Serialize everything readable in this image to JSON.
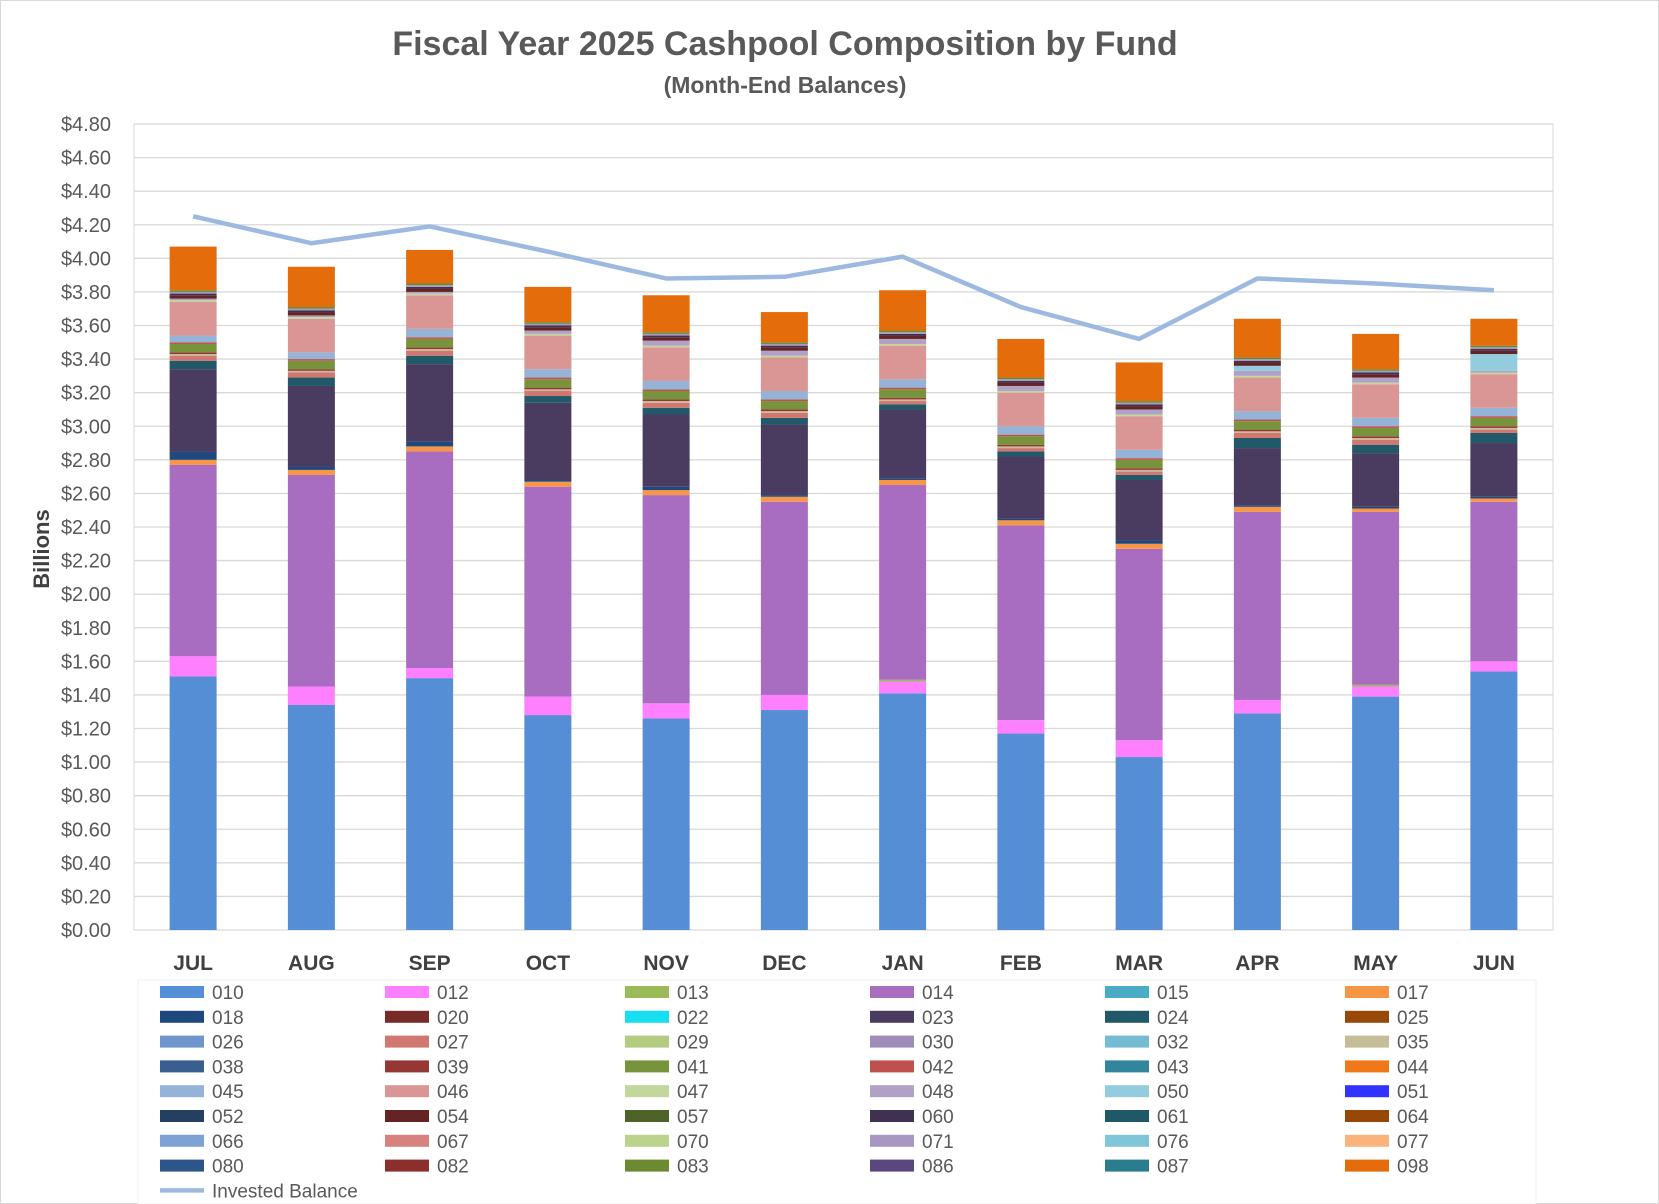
{
  "chart_data": {
    "type": "bar",
    "stacked": true,
    "title": "Fiscal Year 2025 Cashpool Composition by Fund",
    "subtitle": "(Month-End Balances)",
    "xlabel": "",
    "ylabel": "Billions",
    "ylim": [
      0,
      4.8
    ],
    "ytick_step": 0.2,
    "ytick_labels": [
      "$0.00",
      "$0.20",
      "$0.40",
      "$0.60",
      "$0.80",
      "$1.00",
      "$1.20",
      "$1.40",
      "$1.60",
      "$1.80",
      "$2.00",
      "$2.20",
      "$2.40",
      "$2.60",
      "$2.80",
      "$3.00",
      "$3.20",
      "$3.40",
      "$3.60",
      "$3.80",
      "$4.00",
      "$4.20",
      "$4.40",
      "$4.60",
      "$4.80"
    ],
    "grid": true,
    "legend_position": "bottom",
    "categories": [
      "JUL",
      "AUG",
      "SEP",
      "OCT",
      "NOV",
      "DEC",
      "JAN",
      "FEB",
      "MAR",
      "APR",
      "MAY",
      "JUN"
    ],
    "series": [
      {
        "name": "010",
        "color": "#558ED5",
        "values": [
          1.51,
          1.34,
          1.5,
          1.28,
          1.26,
          1.31,
          1.41,
          1.17,
          1.03,
          1.29,
          1.39,
          1.54
        ]
      },
      {
        "name": "012",
        "color": "#FF80FF",
        "values": [
          0.12,
          0.11,
          0.06,
          0.11,
          0.09,
          0.09,
          0.07,
          0.08,
          0.1,
          0.08,
          0.06,
          0.06
        ]
      },
      {
        "name": "013",
        "color": "#9BBB59",
        "values": [
          0.0,
          0.0,
          0.0,
          0.0,
          0.0,
          0.0,
          0.01,
          0.0,
          0.0,
          0.0,
          0.01,
          0.0
        ]
      },
      {
        "name": "014",
        "color": "#A86DC1",
        "values": [
          1.14,
          1.26,
          1.29,
          1.25,
          1.24,
          1.15,
          1.16,
          1.16,
          1.14,
          1.12,
          1.03,
          0.95
        ]
      },
      {
        "name": "015",
        "color": "#4BACC6",
        "values": [
          0.0,
          0.0,
          0.0,
          0.0,
          0.0,
          0.0,
          0.0,
          0.0,
          0.0,
          0.0,
          0.0,
          0.0
        ]
      },
      {
        "name": "017",
        "color": "#F79646",
        "values": [
          0.03,
          0.03,
          0.03,
          0.03,
          0.03,
          0.03,
          0.03,
          0.03,
          0.03,
          0.03,
          0.02,
          0.02
        ]
      },
      {
        "name": "018",
        "color": "#1F497D",
        "values": [
          0.05,
          0.02,
          0.03,
          0.01,
          0.02,
          0.01,
          0.01,
          0.01,
          0.02,
          0.01,
          0.01,
          0.01
        ]
      },
      {
        "name": "020",
        "color": "#772C2A",
        "values": [
          0.0,
          0.0,
          0.0,
          0.0,
          0.0,
          0.0,
          0.0,
          0.0,
          0.0,
          0.0,
          0.0,
          0.0
        ]
      },
      {
        "name": "022",
        "color": "#17DFEF",
        "values": [
          0.0,
          0.0,
          0.0,
          0.0,
          0.0,
          0.0,
          0.0,
          0.0,
          0.0,
          0.0,
          0.0,
          0.0
        ]
      },
      {
        "name": "023",
        "color": "#4A3B60",
        "values": [
          0.49,
          0.48,
          0.46,
          0.46,
          0.43,
          0.42,
          0.41,
          0.37,
          0.36,
          0.34,
          0.32,
          0.32
        ]
      },
      {
        "name": "024",
        "color": "#215968",
        "values": [
          0.05,
          0.05,
          0.05,
          0.04,
          0.04,
          0.04,
          0.03,
          0.03,
          0.03,
          0.06,
          0.05,
          0.06
        ]
      },
      {
        "name": "025",
        "color": "#984807",
        "values": [
          0.0,
          0.0,
          0.0,
          0.0,
          0.0,
          0.0,
          0.0,
          0.0,
          0.0,
          0.0,
          0.0,
          0.0
        ]
      },
      {
        "name": "026",
        "color": "#7094CC",
        "values": [
          0.0,
          0.0,
          0.0,
          0.0,
          0.0,
          0.0,
          0.0,
          0.0,
          0.0,
          0.0,
          0.0,
          0.0
        ]
      },
      {
        "name": "027",
        "color": "#D07772",
        "values": [
          0.03,
          0.03,
          0.03,
          0.03,
          0.03,
          0.03,
          0.02,
          0.02,
          0.02,
          0.03,
          0.03,
          0.02
        ]
      },
      {
        "name": "029",
        "color": "#B3CC82",
        "values": [
          0.0,
          0.0,
          0.0,
          0.0,
          0.0,
          0.0,
          0.0,
          0.0,
          0.0,
          0.0,
          0.0,
          0.0
        ]
      },
      {
        "name": "030",
        "color": "#9F8CB8",
        "values": [
          0.0,
          0.0,
          0.0,
          0.0,
          0.0,
          0.0,
          0.0,
          0.0,
          0.0,
          0.0,
          0.0,
          0.0
        ]
      },
      {
        "name": "032",
        "color": "#74BCD2",
        "values": [
          0.0,
          0.0,
          0.0,
          0.0,
          0.0,
          0.0,
          0.0,
          0.0,
          0.0,
          0.0,
          0.0,
          0.0
        ]
      },
      {
        "name": "035",
        "color": "#C4BD97",
        "values": [
          0.01,
          0.01,
          0.01,
          0.01,
          0.01,
          0.01,
          0.01,
          0.01,
          0.01,
          0.01,
          0.01,
          0.01
        ]
      },
      {
        "name": "038",
        "color": "#395E8F",
        "values": [
          0.0,
          0.0,
          0.0,
          0.0,
          0.0,
          0.0,
          0.0,
          0.0,
          0.0,
          0.0,
          0.0,
          0.0
        ]
      },
      {
        "name": "039",
        "color": "#953735",
        "values": [
          0.01,
          0.01,
          0.01,
          0.01,
          0.01,
          0.01,
          0.01,
          0.01,
          0.01,
          0.01,
          0.01,
          0.01
        ]
      },
      {
        "name": "041",
        "color": "#77933C",
        "values": [
          0.05,
          0.05,
          0.05,
          0.05,
          0.05,
          0.05,
          0.05,
          0.05,
          0.05,
          0.05,
          0.05,
          0.05
        ]
      },
      {
        "name": "042",
        "color": "#C0504D",
        "values": [
          0.01,
          0.01,
          0.01,
          0.01,
          0.01,
          0.01,
          0.01,
          0.01,
          0.01,
          0.01,
          0.01,
          0.01
        ]
      },
      {
        "name": "043",
        "color": "#31859C",
        "values": [
          0.0,
          0.0,
          0.0,
          0.0,
          0.0,
          0.0,
          0.0,
          0.0,
          0.0,
          0.0,
          0.0,
          0.0
        ]
      },
      {
        "name": "044",
        "color": "#F07818",
        "values": [
          0.0,
          0.0,
          0.0,
          0.0,
          0.0,
          0.0,
          0.0,
          0.0,
          0.0,
          0.0,
          0.0,
          0.0
        ]
      },
      {
        "name": "045",
        "color": "#95B3D7",
        "values": [
          0.04,
          0.04,
          0.05,
          0.05,
          0.05,
          0.05,
          0.05,
          0.05,
          0.05,
          0.05,
          0.05,
          0.05
        ]
      },
      {
        "name": "046",
        "color": "#DA9694",
        "values": [
          0.2,
          0.2,
          0.2,
          0.2,
          0.2,
          0.2,
          0.2,
          0.2,
          0.2,
          0.2,
          0.2,
          0.2
        ]
      },
      {
        "name": "047",
        "color": "#C3D69B",
        "values": [
          0.01,
          0.01,
          0.01,
          0.01,
          0.01,
          0.01,
          0.01,
          0.01,
          0.01,
          0.01,
          0.01,
          0.01
        ]
      },
      {
        "name": "048",
        "color": "#B2A1C7",
        "values": [
          0.01,
          0.01,
          0.01,
          0.02,
          0.03,
          0.03,
          0.03,
          0.03,
          0.03,
          0.03,
          0.03,
          0.01
        ]
      },
      {
        "name": "050",
        "color": "#93CDDD",
        "values": [
          0.0,
          0.0,
          0.0,
          0.0,
          0.0,
          0.0,
          0.0,
          0.0,
          0.0,
          0.03,
          0.0,
          0.1
        ]
      },
      {
        "name": "051",
        "color": "#3333FF",
        "values": [
          0.0,
          0.0,
          0.0,
          0.0,
          0.0,
          0.0,
          0.0,
          0.0,
          0.0,
          0.0,
          0.0,
          0.0
        ]
      },
      {
        "name": "052",
        "color": "#243F60",
        "values": [
          0.0,
          0.0,
          0.0,
          0.0,
          0.0,
          0.0,
          0.0,
          0.0,
          0.0,
          0.0,
          0.0,
          0.0
        ]
      },
      {
        "name": "054",
        "color": "#632423",
        "values": [
          0.02,
          0.02,
          0.02,
          0.02,
          0.02,
          0.02,
          0.02,
          0.02,
          0.02,
          0.02,
          0.02,
          0.02
        ]
      },
      {
        "name": "057",
        "color": "#4F6228",
        "values": [
          0.0,
          0.0,
          0.0,
          0.0,
          0.0,
          0.0,
          0.0,
          0.0,
          0.0,
          0.0,
          0.0,
          0.0
        ]
      },
      {
        "name": "060",
        "color": "#3F3151",
        "values": [
          0.01,
          0.01,
          0.01,
          0.01,
          0.01,
          0.01,
          0.01,
          0.01,
          0.01,
          0.01,
          0.01,
          0.01
        ]
      },
      {
        "name": "061",
        "color": "#205867",
        "values": [
          0.0,
          0.0,
          0.0,
          0.0,
          0.0,
          0.0,
          0.0,
          0.0,
          0.0,
          0.0,
          0.0,
          0.0
        ]
      },
      {
        "name": "064",
        "color": "#974706",
        "values": [
          0.0,
          0.0,
          0.0,
          0.0,
          0.0,
          0.0,
          0.0,
          0.0,
          0.0,
          0.0,
          0.0,
          0.0
        ]
      },
      {
        "name": "066",
        "color": "#7EA2D4",
        "values": [
          0.0,
          0.0,
          0.0,
          0.0,
          0.0,
          0.0,
          0.0,
          0.0,
          0.0,
          0.0,
          0.0,
          0.0
        ]
      },
      {
        "name": "067",
        "color": "#D7827E",
        "values": [
          0.0,
          0.0,
          0.0,
          0.0,
          0.0,
          0.0,
          0.0,
          0.0,
          0.0,
          0.0,
          0.0,
          0.0
        ]
      },
      {
        "name": "070",
        "color": "#BCD38D",
        "values": [
          0.0,
          0.0,
          0.0,
          0.0,
          0.0,
          0.0,
          0.0,
          0.0,
          0.0,
          0.0,
          0.0,
          0.0
        ]
      },
      {
        "name": "071",
        "color": "#A897C3",
        "values": [
          0.01,
          0.01,
          0.01,
          0.01,
          0.01,
          0.01,
          0.01,
          0.01,
          0.01,
          0.01,
          0.01,
          0.01
        ]
      },
      {
        "name": "076",
        "color": "#7FC6D8",
        "values": [
          0.0,
          0.0,
          0.0,
          0.0,
          0.0,
          0.0,
          0.0,
          0.0,
          0.0,
          0.0,
          0.0,
          0.0
        ]
      },
      {
        "name": "077",
        "color": "#FAB37A",
        "values": [
          0.0,
          0.0,
          0.0,
          0.0,
          0.0,
          0.0,
          0.0,
          0.0,
          0.0,
          0.0,
          0.0,
          0.0
        ]
      },
      {
        "name": "080",
        "color": "#2E5587",
        "values": [
          0.0,
          0.0,
          0.0,
          0.0,
          0.0,
          0.0,
          0.0,
          0.0,
          0.0,
          0.0,
          0.0,
          0.0
        ]
      },
      {
        "name": "082",
        "color": "#8C2E2C",
        "values": [
          0.0,
          0.0,
          0.0,
          0.0,
          0.0,
          0.0,
          0.0,
          0.0,
          0.0,
          0.0,
          0.0,
          0.0
        ]
      },
      {
        "name": "083",
        "color": "#6C8A32",
        "values": [
          0.01,
          0.01,
          0.01,
          0.01,
          0.01,
          0.01,
          0.01,
          0.01,
          0.01,
          0.01,
          0.01,
          0.01
        ]
      },
      {
        "name": "086",
        "color": "#5B4680",
        "values": [
          0.0,
          0.0,
          0.0,
          0.0,
          0.0,
          0.0,
          0.0,
          0.0,
          0.0,
          0.0,
          0.0,
          0.0
        ]
      },
      {
        "name": "087",
        "color": "#2A7D8C",
        "values": [
          0.0,
          0.0,
          0.0,
          0.0,
          0.0,
          0.0,
          0.0,
          0.0,
          0.0,
          0.0,
          0.0,
          0.0
        ]
      },
      {
        "name": "098",
        "color": "#E46C0A",
        "values": [
          0.26,
          0.24,
          0.2,
          0.21,
          0.22,
          0.18,
          0.24,
          0.23,
          0.23,
          0.23,
          0.21,
          0.16
        ]
      }
    ],
    "line_series": {
      "name": "Invested Balance",
      "color": "#9DB9DF",
      "values": [
        4.25,
        4.09,
        4.19,
        4.04,
        3.88,
        3.89,
        4.01,
        3.71,
        3.52,
        3.88,
        3.85,
        3.81
      ]
    }
  }
}
